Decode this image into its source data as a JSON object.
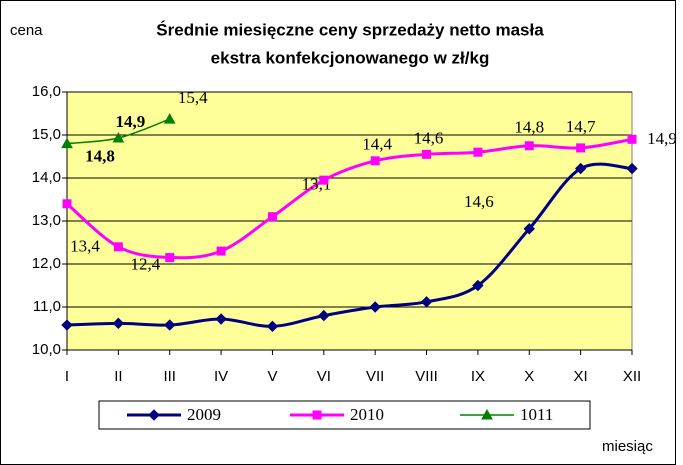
{
  "chart_data": {
    "type": "line",
    "title_lines": [
      "Średnie miesięczne ceny sprzedaży netto masła",
      "ekstra konfekcjonowanego w zł/kg"
    ],
    "y_axis_label": "cena",
    "x_axis_label": "miesiąc",
    "categories": [
      "I",
      "II",
      "III",
      "IV",
      "V",
      "VI",
      "VII",
      "VIII",
      "IX",
      "X",
      "XI",
      "XII"
    ],
    "ylim": [
      10,
      16
    ],
    "yticks": [
      {
        "value": 10,
        "label": "10,0"
      },
      {
        "value": 11,
        "label": "11,0"
      },
      {
        "value": 12,
        "label": "12,0"
      },
      {
        "value": 13,
        "label": "13,0"
      },
      {
        "value": 14,
        "label": "14,0"
      },
      {
        "value": 15,
        "label": "15,0"
      },
      {
        "value": 16,
        "label": "16,0"
      }
    ],
    "grid": true,
    "plot_background": "#ffff99",
    "legend": "bottom",
    "series": [
      {
        "name": "2009",
        "color": "#000080",
        "marker": "diamond",
        "values": [
          10.58,
          10.62,
          10.58,
          10.72,
          10.55,
          10.8,
          11.0,
          11.12,
          11.5,
          12.82,
          14.22,
          14.22
        ]
      },
      {
        "name": "2010",
        "color": "#ff00ff",
        "marker": "square",
        "values": [
          13.4,
          12.4,
          12.15,
          12.3,
          13.1,
          13.95,
          14.4,
          14.55,
          14.6,
          14.75,
          14.7,
          14.9
        ],
        "value_labels": [
          "13,4",
          "12,4",
          null,
          null,
          "13,1",
          null,
          "14,4",
          "14,6",
          "14,6",
          "14,8",
          "14,7",
          "14,9"
        ]
      },
      {
        "name": "1011",
        "color": "#008000",
        "marker": "triangle",
        "values": [
          14.8,
          14.93,
          15.37,
          null,
          null,
          null,
          null,
          null,
          null,
          null,
          null,
          null
        ],
        "value_labels": [
          "14,8",
          "14,9",
          "15,4",
          null,
          null,
          null,
          null,
          null,
          null,
          null,
          null,
          null
        ]
      }
    ]
  }
}
